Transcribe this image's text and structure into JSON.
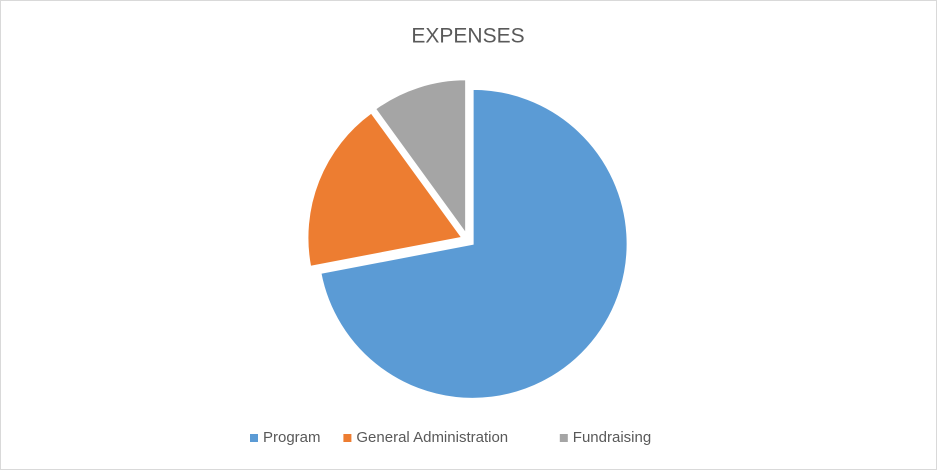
{
  "chart_data": {
    "type": "pie",
    "title": "EXPENSES",
    "categories": [
      "Program",
      "General Administration",
      "Fundraising"
    ],
    "values": [
      72,
      18,
      10
    ],
    "colors": [
      "#5b9bd5",
      "#ed7d31",
      "#a5a5a5"
    ],
    "legend": "bottom"
  }
}
